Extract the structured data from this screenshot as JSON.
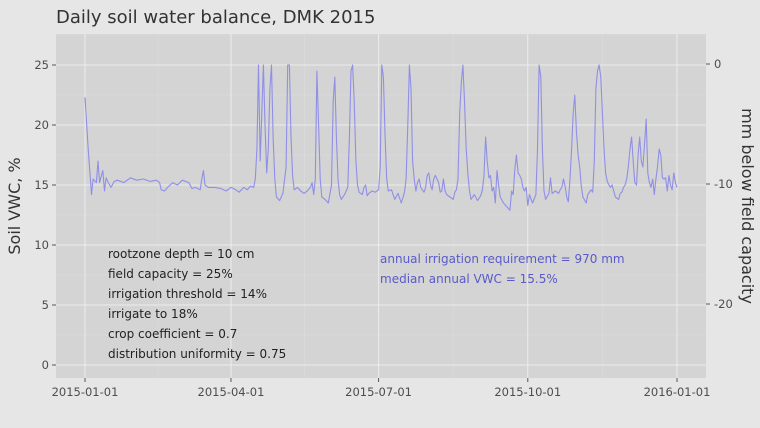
{
  "chart_data": {
    "type": "line",
    "title": "Daily soil water balance,   DMK 2015",
    "ylabel": "Soil VWC, %",
    "y2label": "mm below field capacity",
    "xlabel": "",
    "x_ticks": [
      "2015-01-01",
      "2015-04-01",
      "2015-07-01",
      "2015-10-01",
      "2016-01-01"
    ],
    "y_ticks": [
      "0",
      "5",
      "10",
      "15",
      "20",
      "25"
    ],
    "y2_ticks": [
      "0",
      "-10",
      "-20"
    ],
    "ylim": [
      -1,
      27.5
    ],
    "grid": true,
    "line_color": "#8f8fe6",
    "annotations_left": [
      "rootzone depth = 10 cm",
      "field capacity = 25%",
      "irrigation threshold = 14%",
      "irrigate to 18%",
      "crop coefficient = 0.7",
      "distribution uniformity = 0.75"
    ],
    "annotations_right": [
      "annual irrigation requirement = 970 mm",
      "median annual VWC = 15.5%"
    ],
    "series": [
      {
        "values": [
          [
            0,
            22.3
          ],
          [
            2,
            18
          ],
          [
            4,
            14.2
          ],
          [
            5,
            15.5
          ],
          [
            7,
            15.2
          ],
          [
            8,
            17
          ],
          [
            9,
            15.2
          ],
          [
            11,
            16.2
          ],
          [
            12,
            14.5
          ],
          [
            13,
            15.6
          ],
          [
            14,
            15.3
          ],
          [
            16,
            14.8
          ],
          [
            18,
            15.3
          ],
          [
            20,
            15.4
          ],
          [
            24,
            15.2
          ],
          [
            28,
            15.6
          ],
          [
            32,
            15.4
          ],
          [
            36,
            15.5
          ],
          [
            40,
            15.3
          ],
          [
            44,
            15.4
          ],
          [
            46,
            15.2
          ],
          [
            47,
            14.6
          ],
          [
            49,
            14.5
          ],
          [
            51,
            14.8
          ],
          [
            54,
            15.2
          ],
          [
            57,
            15
          ],
          [
            60,
            15.4
          ],
          [
            64,
            15.2
          ],
          [
            66,
            14.7
          ],
          [
            68,
            14.8
          ],
          [
            71,
            14.6
          ],
          [
            72,
            15.5
          ],
          [
            73,
            16.2
          ],
          [
            74,
            15
          ],
          [
            76,
            14.8
          ],
          [
            80,
            14.8
          ],
          [
            84,
            14.7
          ],
          [
            87,
            14.5
          ],
          [
            90,
            14.8
          ],
          [
            93,
            14.6
          ],
          [
            95,
            14.4
          ],
          [
            98,
            14.8
          ],
          [
            100,
            14.6
          ],
          [
            102,
            14.9
          ],
          [
            104,
            14.8
          ],
          [
            105,
            15.5
          ],
          [
            106,
            18
          ],
          [
            107,
            25
          ],
          [
            108,
            17
          ],
          [
            109,
            21
          ],
          [
            110,
            25
          ],
          [
            111,
            20
          ],
          [
            112,
            16
          ],
          [
            113,
            18
          ],
          [
            114,
            23
          ],
          [
            115,
            25
          ],
          [
            116,
            19
          ],
          [
            117,
            15.5
          ],
          [
            118,
            14
          ],
          [
            120,
            13.7
          ],
          [
            122,
            14.3
          ],
          [
            124,
            16.5
          ],
          [
            125,
            25
          ],
          [
            126,
            25
          ],
          [
            127,
            19
          ],
          [
            128,
            15.8
          ],
          [
            129,
            14.6
          ],
          [
            131,
            14.8
          ],
          [
            133,
            14.5
          ],
          [
            135,
            14.3
          ],
          [
            137,
            14.5
          ],
          [
            139,
            14.8
          ],
          [
            140,
            15.2
          ],
          [
            141,
            14.2
          ],
          [
            142,
            15.5
          ],
          [
            143,
            24.5
          ],
          [
            144,
            20
          ],
          [
            145,
            15.5
          ],
          [
            146,
            14
          ],
          [
            148,
            13.8
          ],
          [
            150,
            13.5
          ],
          [
            152,
            15
          ],
          [
            153,
            22
          ],
          [
            154,
            24
          ],
          [
            155,
            19
          ],
          [
            156,
            15.5
          ],
          [
            157,
            14.2
          ],
          [
            158,
            13.8
          ],
          [
            160,
            14.2
          ],
          [
            162,
            14.8
          ],
          [
            163,
            19
          ],
          [
            164,
            24.5
          ],
          [
            165,
            25
          ],
          [
            166,
            22
          ],
          [
            167,
            17
          ],
          [
            168,
            15
          ],
          [
            169,
            14.4
          ],
          [
            171,
            14.2
          ],
          [
            172,
            14.8
          ],
          [
            173,
            15
          ],
          [
            174,
            14.1
          ],
          [
            175,
            14.3
          ],
          [
            177,
            14.5
          ],
          [
            179,
            14.4
          ],
          [
            181,
            14.6
          ],
          [
            182,
            16.5
          ],
          [
            183,
            25
          ],
          [
            184,
            24
          ],
          [
            185,
            19
          ],
          [
            186,
            15.5
          ],
          [
            187,
            14.5
          ],
          [
            189,
            14.6
          ],
          [
            191,
            13.8
          ],
          [
            193,
            14.3
          ],
          [
            195,
            13.5
          ],
          [
            197,
            14.4
          ],
          [
            198,
            15.5
          ],
          [
            199,
            20
          ],
          [
            200,
            25
          ],
          [
            201,
            23
          ],
          [
            202,
            17
          ],
          [
            203,
            15.5
          ],
          [
            204,
            14.5
          ],
          [
            205,
            15.2
          ],
          [
            206,
            15.5
          ],
          [
            207,
            14.8
          ],
          [
            209,
            14.4
          ],
          [
            210,
            14.8
          ],
          [
            211,
            15.8
          ],
          [
            212,
            16
          ],
          [
            213,
            15
          ],
          [
            214,
            14.6
          ],
          [
            215,
            15.5
          ],
          [
            216,
            15.8
          ],
          [
            218,
            15.2
          ],
          [
            219,
            14.4
          ],
          [
            220,
            14.5
          ],
          [
            221,
            15.5
          ],
          [
            222,
            14.5
          ],
          [
            223,
            14.2
          ],
          [
            225,
            14
          ],
          [
            227,
            13.8
          ],
          [
            228,
            14.4
          ],
          [
            229,
            14.6
          ],
          [
            230,
            15.5
          ],
          [
            231,
            21
          ],
          [
            232,
            23.5
          ],
          [
            233,
            25
          ],
          [
            234,
            22
          ],
          [
            235,
            18
          ],
          [
            236,
            16
          ],
          [
            237,
            14.6
          ],
          [
            238,
            13.8
          ],
          [
            240,
            14.2
          ],
          [
            242,
            13.7
          ],
          [
            244,
            14.1
          ],
          [
            245,
            14.6
          ],
          [
            246,
            15.8
          ],
          [
            247,
            19
          ],
          [
            248,
            17
          ],
          [
            249,
            15.6
          ],
          [
            250,
            15.8
          ],
          [
            251,
            14.5
          ],
          [
            252,
            14.8
          ],
          [
            253,
            13.5
          ],
          [
            254,
            16.2
          ],
          [
            255,
            15
          ],
          [
            256,
            14
          ],
          [
            258,
            13.5
          ],
          [
            260,
            13.2
          ],
          [
            262,
            12.9
          ],
          [
            263,
            14.5
          ],
          [
            264,
            14.2
          ],
          [
            265,
            16.3
          ],
          [
            266,
            17.5
          ],
          [
            267,
            16
          ],
          [
            268,
            15.8
          ],
          [
            269,
            15.5
          ],
          [
            270,
            14.8
          ],
          [
            271,
            14.5
          ],
          [
            272,
            14.8
          ],
          [
            273,
            13.3
          ],
          [
            274,
            14.2
          ],
          [
            276,
            13.5
          ],
          [
            278,
            14.2
          ],
          [
            279,
            18
          ],
          [
            280,
            25
          ],
          [
            281,
            24
          ],
          [
            282,
            18
          ],
          [
            283,
            14.5
          ],
          [
            284,
            13.8
          ],
          [
            286,
            14.3
          ],
          [
            287,
            15.6
          ],
          [
            288,
            14.3
          ],
          [
            290,
            14.5
          ],
          [
            292,
            14.3
          ],
          [
            293,
            14.6
          ],
          [
            294,
            14.8
          ],
          [
            295,
            15.5
          ],
          [
            296,
            14.9
          ],
          [
            297,
            14
          ],
          [
            298,
            13.6
          ],
          [
            299,
            15.5
          ],
          [
            300,
            18
          ],
          [
            301,
            21
          ],
          [
            302,
            22.5
          ],
          [
            303,
            19.5
          ],
          [
            304,
            17.5
          ],
          [
            305,
            16.5
          ],
          [
            306,
            14.9
          ],
          [
            307,
            14
          ],
          [
            309,
            13.5
          ],
          [
            310,
            14.2
          ],
          [
            312,
            14.6
          ],
          [
            313,
            14.4
          ],
          [
            314,
            17
          ],
          [
            315,
            23
          ],
          [
            316,
            24.5
          ],
          [
            317,
            25
          ],
          [
            318,
            24
          ],
          [
            319,
            21
          ],
          [
            320,
            18
          ],
          [
            321,
            16
          ],
          [
            322,
            15.3
          ],
          [
            323,
            15
          ],
          [
            324,
            14.8
          ],
          [
            325,
            15
          ],
          [
            326,
            14.5
          ],
          [
            327,
            14
          ],
          [
            329,
            13.8
          ],
          [
            330,
            14.3
          ],
          [
            331,
            14.4
          ],
          [
            332,
            14.8
          ],
          [
            333,
            15
          ],
          [
            334,
            15.5
          ],
          [
            335,
            16.5
          ],
          [
            336,
            18
          ],
          [
            337,
            19
          ],
          [
            338,
            17
          ],
          [
            339,
            15.2
          ],
          [
            340,
            15
          ],
          [
            341,
            17.5
          ],
          [
            342,
            19
          ],
          [
            343,
            17
          ],
          [
            344,
            16.5
          ],
          [
            345,
            18.5
          ],
          [
            346,
            20.5
          ],
          [
            347,
            16
          ],
          [
            348,
            15.2
          ],
          [
            349,
            14.8
          ],
          [
            350,
            15.5
          ],
          [
            351,
            14.2
          ],
          [
            352,
            15.5
          ],
          [
            353,
            16.5
          ],
          [
            354,
            18
          ],
          [
            355,
            17.5
          ],
          [
            356,
            15.6
          ],
          [
            357,
            15.5
          ],
          [
            358,
            15.6
          ],
          [
            359,
            14.5
          ],
          [
            360,
            15.8
          ],
          [
            361,
            15
          ],
          [
            362,
            14.6
          ],
          [
            363,
            16
          ],
          [
            364,
            15.2
          ],
          [
            365,
            14.8
          ]
        ]
      }
    ]
  }
}
